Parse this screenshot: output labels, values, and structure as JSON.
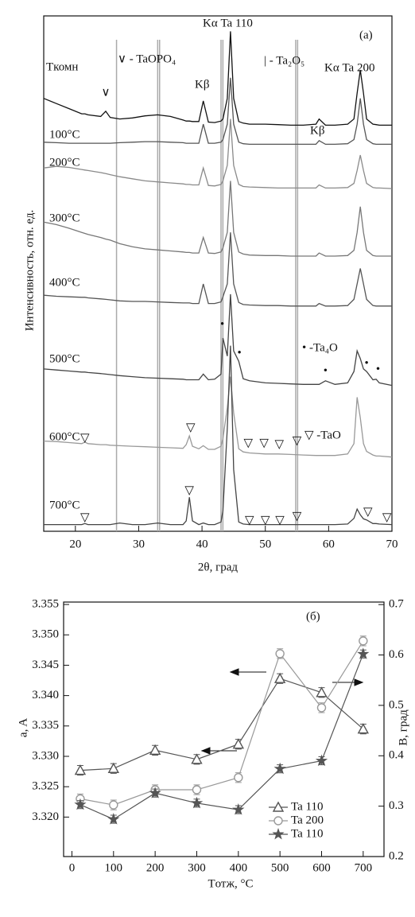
{
  "chart_data": [
    {
      "type": "line",
      "xlabel": "2θ, град",
      "ylabel": "Интенсивность, отн. ед.",
      "x": [
        15,
        17,
        19,
        21,
        21.5,
        22,
        24,
        24.8,
        25.5,
        27,
        29,
        31,
        33,
        35,
        37,
        37.5,
        38,
        38.5,
        39.5,
        40.2,
        41,
        42,
        43,
        43.3,
        44,
        44.5,
        45,
        45.8,
        46.5,
        47.5,
        50,
        52,
        54,
        56,
        58,
        58.5,
        59.5,
        61,
        63,
        64,
        64.5,
        65,
        65.5,
        66,
        67,
        67.5,
        68,
        70
      ],
      "xlim": [
        15,
        70
      ],
      "xticks": [
        20,
        30,
        40,
        50,
        60,
        70
      ],
      "ylim": [
        0,
        100
      ],
      "series": [
        {
          "name": "Tкомн",
          "color": "#111111",
          "values": [
            84,
            83,
            82,
            81,
            81,
            80.8,
            80.5,
            81.5,
            80.3,
            80,
            80.2,
            80.6,
            80.8,
            80.5,
            79.8,
            79.6,
            79.6,
            79.5,
            79.5,
            83.5,
            79.4,
            79.3,
            79.6,
            80,
            84,
            97,
            84,
            79.5,
            79.2,
            79,
            79,
            78.9,
            78.8,
            78.8,
            79,
            80,
            78.8,
            78.8,
            79,
            80,
            85,
            89.5,
            85,
            80,
            79,
            78.9,
            78.8,
            78.8
          ]
        },
        {
          "name": "100°C",
          "color": "#555555",
          "values": [
            75.5,
            75.4,
            75.3,
            75.3,
            75.3,
            75.3,
            75.3,
            75.3,
            75.3,
            75.4,
            75.5,
            75.6,
            75.6,
            75.5,
            75.4,
            75.3,
            75.3,
            75.3,
            75.3,
            79,
            75.3,
            75.3,
            75.5,
            76,
            79,
            88,
            79,
            75.5,
            75.2,
            75.1,
            75.1,
            75.1,
            75.1,
            75.1,
            75.1,
            75.8,
            75.1,
            75.1,
            75.2,
            76,
            79,
            84,
            79,
            76,
            75.2,
            75.1,
            75.1,
            75.1
          ]
        },
        {
          "name": "200°C",
          "color": "#8a8a8a",
          "values": [
            70.5,
            70.8,
            70.6,
            70.2,
            70.1,
            70,
            69.6,
            69.4,
            69.2,
            68.8,
            68.4,
            68,
            67.8,
            67.6,
            67.4,
            67.3,
            67.3,
            67.2,
            67.2,
            70.5,
            67.1,
            67,
            67.3,
            68,
            71,
            80,
            71,
            67.3,
            66.9,
            66.8,
            66.7,
            66.6,
            66.6,
            66.6,
            66.6,
            67.2,
            66.6,
            66.6,
            66.7,
            67.5,
            70,
            73,
            70,
            67.5,
            66.7,
            66.6,
            66.6,
            66.5
          ]
        },
        {
          "name": "300°C",
          "color": "#777777",
          "values": [
            60,
            59.5,
            58.8,
            58,
            57.8,
            57.6,
            57,
            56.7,
            56.5,
            55.8,
            55.2,
            54.8,
            54.6,
            54.4,
            54.2,
            54.1,
            54.1,
            54,
            54,
            57,
            54,
            53.9,
            54.2,
            55,
            58,
            68,
            58,
            54.2,
            53.8,
            53.6,
            53.5,
            53.5,
            53.4,
            53.4,
            53.4,
            54,
            53.4,
            53.4,
            53.5,
            54.5,
            58,
            63,
            58,
            54.5,
            53.5,
            53.4,
            53.4,
            53.4
          ]
        },
        {
          "name": "400°C",
          "color": "#555555",
          "values": [
            45.8,
            45.6,
            45.5,
            45.4,
            45.4,
            45.3,
            45.1,
            45,
            44.9,
            44.7,
            44.6,
            44.6,
            44.5,
            44.4,
            44.3,
            44.3,
            44.3,
            44.2,
            44.2,
            48,
            44.2,
            44.2,
            44.5,
            45.5,
            48,
            58,
            48,
            44.4,
            44,
            43.9,
            43.8,
            43.8,
            43.7,
            43.7,
            43.7,
            44.2,
            43.7,
            43.7,
            43.8,
            45,
            48,
            51,
            48,
            45,
            43.8,
            43.7,
            43.7,
            43.7
          ]
        },
        {
          "name": "500°C",
          "color": "#444444",
          "values": [
            31.5,
            31.3,
            31.1,
            30.9,
            30.9,
            30.8,
            30.6,
            30.5,
            30.4,
            30.2,
            30,
            29.8,
            29.7,
            29.6,
            29.5,
            29.4,
            29.4,
            29.4,
            29.4,
            30.5,
            29.4,
            29.5,
            30.5,
            37.5,
            34,
            46,
            35,
            33,
            29.6,
            29.2,
            28.8,
            28.7,
            28.6,
            28.5,
            28.5,
            28.5,
            29.2,
            28.5,
            28.8,
            31,
            35,
            33.5,
            31.5,
            31,
            29.4,
            29.5,
            28.8,
            28.3
          ]
        },
        {
          "name": "600°C",
          "color": "#999999",
          "values": [
            17.5,
            17.4,
            17.2,
            17,
            17.3,
            17,
            16.8,
            16.8,
            16.7,
            16.6,
            16.5,
            16.4,
            16.3,
            16.2,
            16.1,
            16.8,
            18.5,
            16.5,
            16,
            16.6,
            15.9,
            15.9,
            16.5,
            18,
            24,
            30,
            23,
            16,
            15.4,
            15.2,
            15,
            15,
            14.9,
            14.8,
            14.7,
            14.7,
            14.7,
            14.7,
            15,
            17,
            26,
            22,
            17,
            15.5,
            14.8,
            14.6,
            14.6,
            14.4
          ]
        },
        {
          "name": "700°C",
          "color": "#444444",
          "values": [
            1.3,
            1.3,
            1.3,
            1.3,
            1.5,
            1.3,
            1.3,
            1.3,
            1.3,
            1.6,
            1.3,
            1.3,
            1.6,
            1.3,
            1.3,
            2,
            6.6,
            2,
            1.3,
            1.6,
            1.3,
            1.3,
            1.8,
            4,
            20,
            36,
            12,
            1.8,
            1.4,
            1.3,
            1.3,
            1.3,
            1.3,
            1.3,
            1.3,
            1.3,
            1.3,
            1.3,
            1.4,
            2.5,
            4.3,
            3.2,
            2.4,
            2.2,
            1.5,
            1.5,
            1.4,
            1.3
          ]
        }
      ],
      "reference_lines": {
        "color": "#aaaaaa",
        "x": [
          26.5,
          33.0,
          33.3,
          43.0,
          43.3,
          54.8,
          55.1
        ]
      },
      "peak_marks": [
        {
          "symbol": "∨",
          "x": [
            24.8
          ],
          "y": [
            85
          ]
        },
        {
          "symbol": "•",
          "x": [
            43.2,
            45.9,
            59.5,
            66.0,
            67.8
          ],
          "y": [
            40,
            34.5,
            31,
            32.5,
            31.3
          ]
        },
        {
          "symbol": "▽",
          "x": [
            21.5,
            38.2,
            47.3,
            49.8,
            52.2,
            55.0,
            21.5,
            38.0,
            47.5,
            50.0,
            52.3,
            55.0,
            66.2,
            69.2
          ],
          "y": [
            18,
            20,
            17,
            17,
            16.7,
            17.4,
            2.5,
            7.8,
            2,
            2,
            2,
            2.8,
            3.6,
            2.5
          ]
        }
      ],
      "annotations": [
        "Kα Ta 110",
        "(a)",
        "∨ - TaOPO₄",
        "| - Ta₂O₅",
        "Kα Ta 200",
        "Kβ",
        "Kβ",
        "• -Ta₄O",
        "▽ -TaO"
      ]
    },
    {
      "type": "line",
      "xlabel": "Tотж, °C",
      "ylabel": "a, A",
      "y2label": "B, град",
      "x": [
        20,
        100,
        200,
        300,
        400,
        500,
        600,
        700
      ],
      "xlim": [
        -20,
        750
      ],
      "xticks": [
        0,
        100,
        200,
        300,
        400,
        500,
        600,
        700
      ],
      "ylim": [
        3.3135,
        3.3554
      ],
      "yticks": [
        3.355,
        {
          "value": 3.35,
          "label": "3.350"
        },
        3.345,
        {
          "value": 3.34,
          "label": "3.340"
        },
        3.335,
        {
          "value": 3.33,
          "label": "3.330"
        },
        3.325,
        {
          "value": 3.32,
          "label": "3.320"
        }
      ],
      "y2lim": [
        0.2,
        0.705
      ],
      "y2ticks": [
        0.2,
        0.3,
        0.4,
        0.5,
        0.6,
        0.7
      ],
      "legend": "lower right",
      "series": [
        {
          "name": "Ta 110",
          "color": "#555555",
          "marker": "triangle",
          "values": [
            3.3277,
            3.328,
            3.331,
            3.3295,
            3.332,
            3.3428,
            3.3405,
            3.3345
          ],
          "errors": [
            0.0008,
            0.0008,
            0.0008,
            0.0008,
            0.0008,
            0.0008,
            0.0008,
            0.0008
          ]
        },
        {
          "name": "Ta 200",
          "color": "#999999",
          "marker": "circle",
          "values": [
            3.323,
            3.322,
            3.3245,
            3.3245,
            3.3265,
            3.3469,
            3.338,
            3.349
          ],
          "errors": [
            0.0008,
            0.0008,
            0.0008,
            0.0008,
            0.0008,
            0.0008,
            0.0008,
            0.0008
          ]
        },
        {
          "name": "Ta 110",
          "color": "#555555",
          "marker": "star",
          "axis": "y2",
          "values": [
            0.303,
            0.274,
            0.326,
            0.306,
            0.293,
            0.374,
            0.39,
            0.602
          ],
          "errors": [
            0.008,
            0.008,
            0.008,
            0.008,
            0.008,
            0.008,
            0.008,
            0.008
          ]
        }
      ],
      "annotations": [
        "(б)"
      ]
    }
  ]
}
